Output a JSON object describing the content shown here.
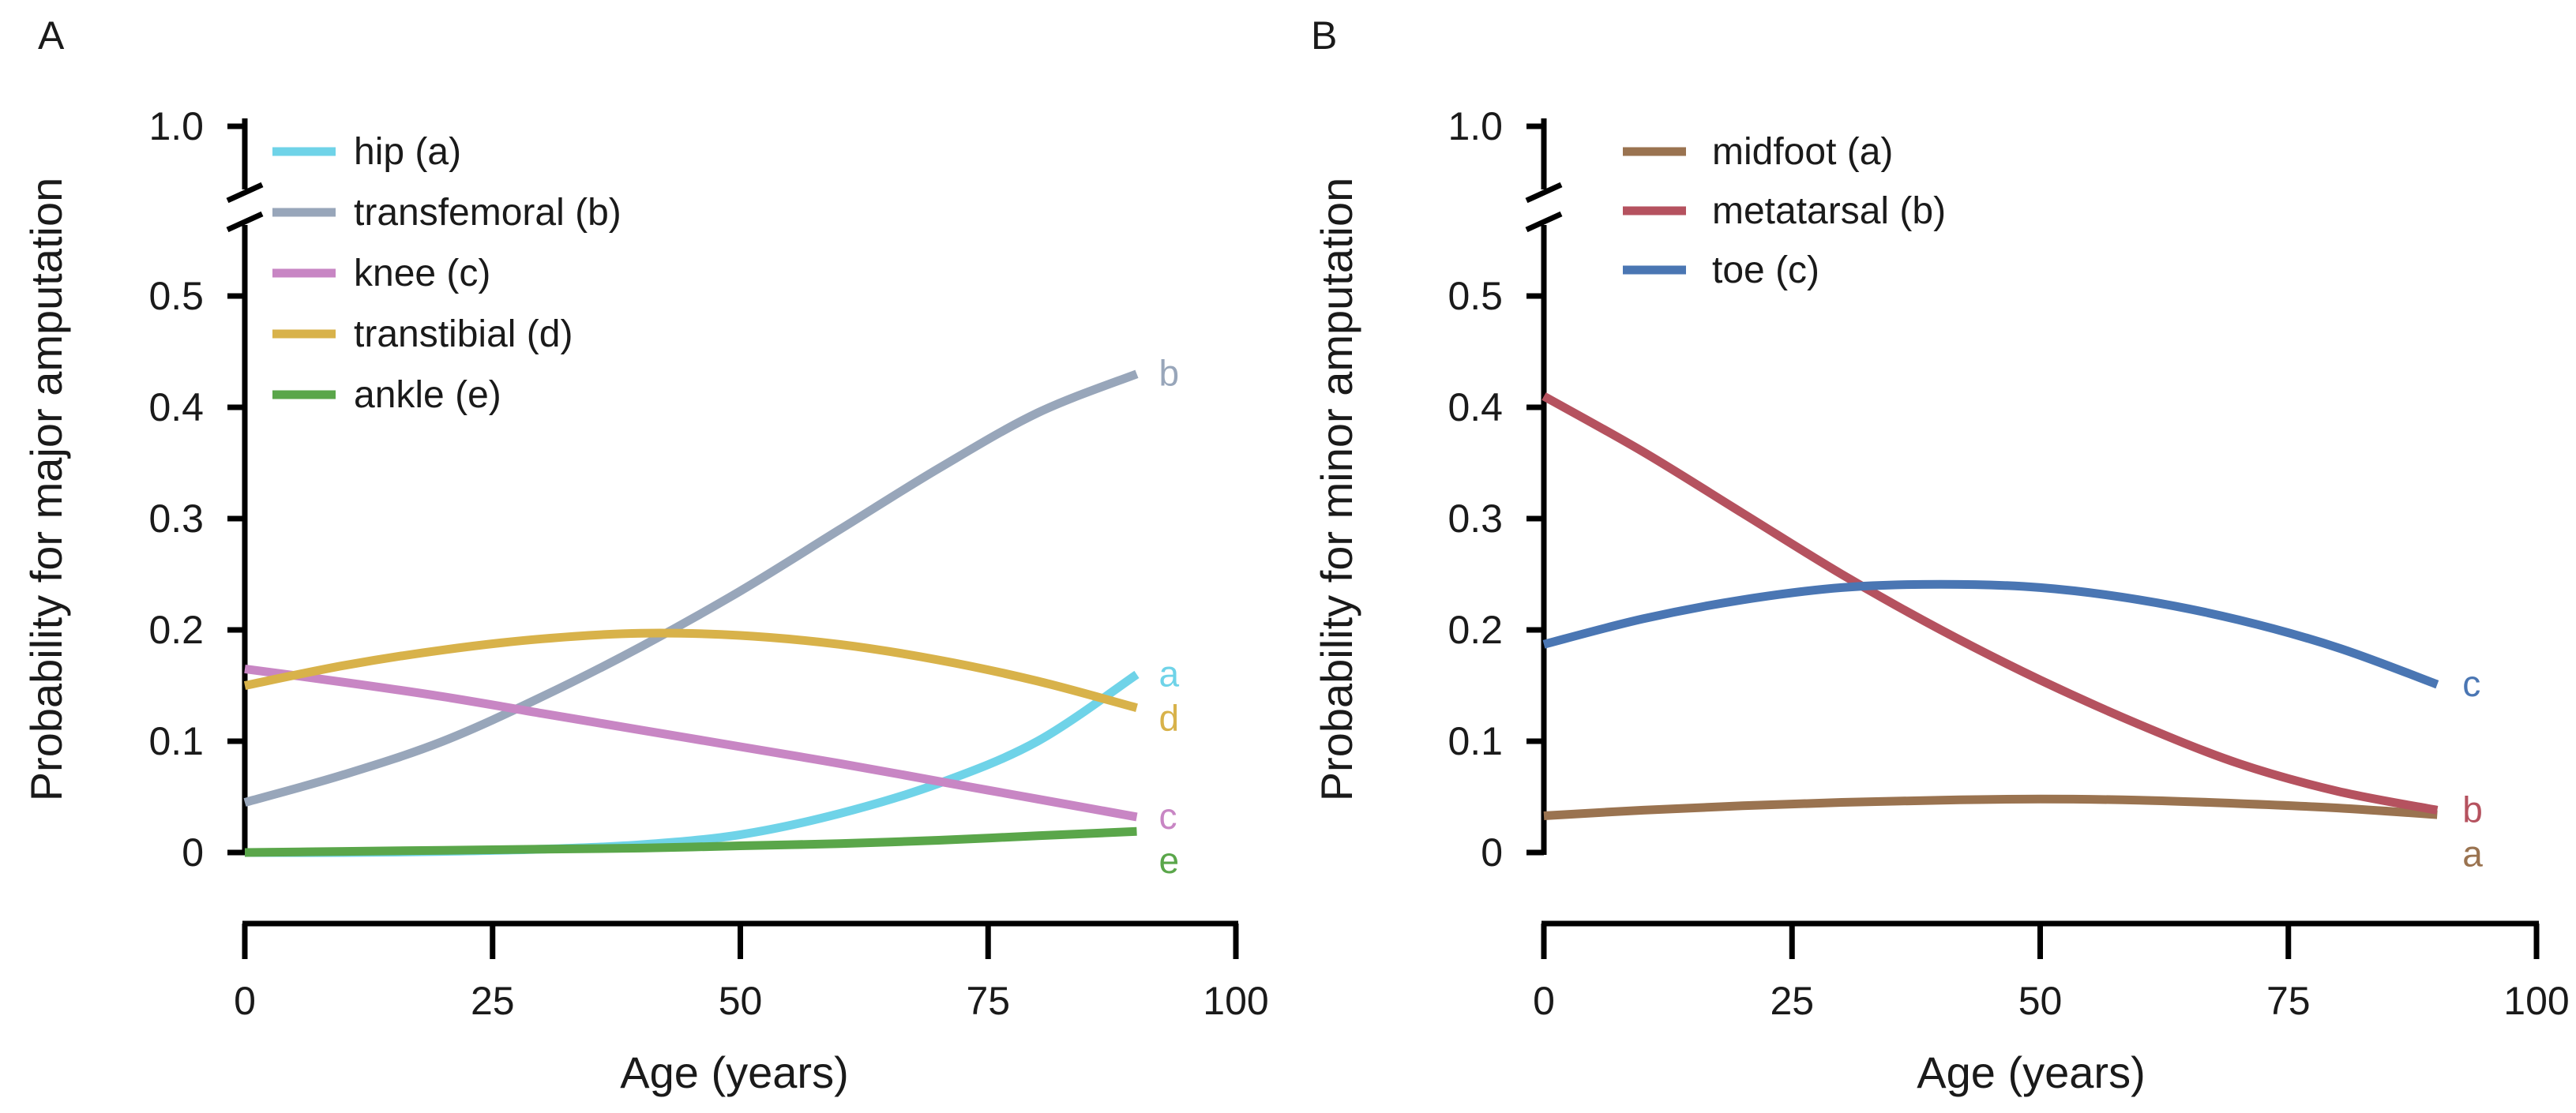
{
  "chart_data": [
    {
      "panel": "A",
      "type": "line",
      "xlabel": "Age (years)",
      "ylabel": "Probability for major amputation",
      "xlim": [
        0,
        100
      ],
      "ylim": [
        0,
        1.0
      ],
      "y_axis_break": [
        0.55,
        0.95
      ],
      "xticks": [
        0,
        25,
        50,
        75,
        100
      ],
      "xtick_labels": [
        "0",
        "25",
        "50",
        "75",
        "100"
      ],
      "yticks": [
        0,
        0.1,
        0.2,
        0.3,
        0.4,
        0.5,
        1.0
      ],
      "ytick_labels": [
        "0",
        "0.1",
        "0.2",
        "0.3",
        "0.4",
        "0.5",
        "1.0"
      ],
      "legend_position": "top-left",
      "series": [
        {
          "name": "hip (a)",
          "label": "a",
          "color": "#6fd3e8",
          "x": [
            0,
            10,
            20,
            30,
            40,
            50,
            60,
            70,
            80,
            90
          ],
          "y": [
            0.0,
            0.0,
            0.001,
            0.003,
            0.007,
            0.016,
            0.035,
            0.062,
            0.1,
            0.16
          ]
        },
        {
          "name": "transfemoral (b)",
          "label": "b",
          "color": "#98a6ba",
          "x": [
            0,
            10,
            20,
            30,
            40,
            50,
            60,
            70,
            80,
            90
          ],
          "y": [
            0.045,
            0.07,
            0.1,
            0.14,
            0.185,
            0.235,
            0.29,
            0.345,
            0.395,
            0.43
          ]
        },
        {
          "name": "knee (c)",
          "label": "c",
          "color": "#c886c4",
          "x": [
            0,
            10,
            20,
            30,
            40,
            50,
            60,
            70,
            80,
            90
          ],
          "y": [
            0.165,
            0.153,
            0.14,
            0.125,
            0.11,
            0.095,
            0.08,
            0.064,
            0.048,
            0.032
          ]
        },
        {
          "name": "transtibial (d)",
          "label": "d",
          "color": "#d8b24a",
          "x": [
            0,
            10,
            20,
            30,
            40,
            50,
            60,
            70,
            80,
            90
          ],
          "y": [
            0.15,
            0.168,
            0.182,
            0.192,
            0.197,
            0.195,
            0.187,
            0.173,
            0.154,
            0.13
          ]
        },
        {
          "name": "ankle (e)",
          "label": "e",
          "color": "#5aa64a",
          "x": [
            0,
            10,
            20,
            30,
            40,
            50,
            60,
            70,
            80,
            90
          ],
          "y": [
            0.0,
            0.001,
            0.002,
            0.003,
            0.004,
            0.006,
            0.008,
            0.011,
            0.015,
            0.019
          ]
        }
      ]
    },
    {
      "panel": "B",
      "type": "line",
      "xlabel": "Age (years)",
      "ylabel": "Probability for minor amputation",
      "xlim": [
        0,
        100
      ],
      "ylim": [
        0,
        1.0
      ],
      "y_axis_break": [
        0.55,
        0.95
      ],
      "xticks": [
        0,
        25,
        50,
        75,
        100
      ],
      "xtick_labels": [
        "0",
        "25",
        "50",
        "75",
        "100"
      ],
      "yticks": [
        0,
        0.1,
        0.2,
        0.3,
        0.4,
        0.5,
        1.0
      ],
      "ytick_labels": [
        "0",
        "0.1",
        "0.2",
        "0.3",
        "0.4",
        "0.5",
        "1.0"
      ],
      "legend_position": "top-center",
      "series": [
        {
          "name": "midfoot (a)",
          "label": "a",
          "color": "#9a7350",
          "x": [
            0,
            10,
            20,
            30,
            40,
            50,
            60,
            70,
            80,
            90
          ],
          "y": [
            0.033,
            0.038,
            0.042,
            0.045,
            0.047,
            0.048,
            0.047,
            0.044,
            0.04,
            0.034
          ]
        },
        {
          "name": "metatarsal (b)",
          "label": "b",
          "color": "#b5525f",
          "x": [
            0,
            10,
            20,
            30,
            40,
            50,
            60,
            70,
            80,
            90
          ],
          "y": [
            0.41,
            0.36,
            0.305,
            0.25,
            0.2,
            0.155,
            0.115,
            0.08,
            0.055,
            0.038
          ]
        },
        {
          "name": "toe (c)",
          "label": "c",
          "color": "#4a76b3",
          "x": [
            0,
            10,
            20,
            30,
            40,
            50,
            60,
            70,
            80,
            90
          ],
          "y": [
            0.187,
            0.21,
            0.227,
            0.238,
            0.241,
            0.238,
            0.227,
            0.209,
            0.184,
            0.151
          ]
        }
      ]
    }
  ]
}
